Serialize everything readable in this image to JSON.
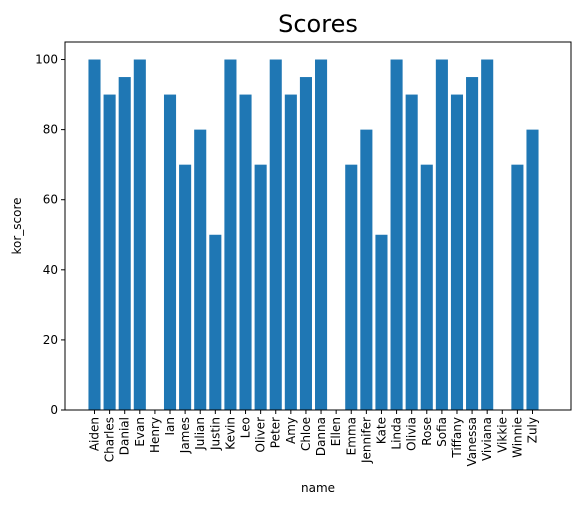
{
  "chart_data": {
    "type": "bar",
    "title": "Scores",
    "xlabel": "name",
    "ylabel": "kor_score",
    "ylim": [
      0,
      105
    ],
    "yticks": [
      0,
      20,
      40,
      60,
      80,
      100
    ],
    "bar_color": "#1f77b4",
    "grid": false,
    "categories": [
      "Aiden",
      "Charles",
      "Danial",
      "Evan",
      "Henry",
      "Ian",
      "James",
      "Julian",
      "Justin",
      "Kevin",
      "Leo",
      "Oliver",
      "Peter",
      "Amy",
      "Chloe",
      "Danna",
      "Ellen",
      "Emma",
      "Jennifer",
      "Kate",
      "Linda",
      "Olivia",
      "Rose",
      "Sofia",
      "Tiffany",
      "Vanessa",
      "Viviana",
      "Vikkie",
      "Winnie",
      "Zuly"
    ],
    "values": [
      100,
      90,
      95,
      100,
      0,
      90,
      70,
      80,
      50,
      100,
      90,
      70,
      100,
      90,
      95,
      100,
      0,
      70,
      80,
      50,
      100,
      90,
      70,
      100,
      90,
      95,
      100,
      0,
      70,
      80
    ]
  }
}
